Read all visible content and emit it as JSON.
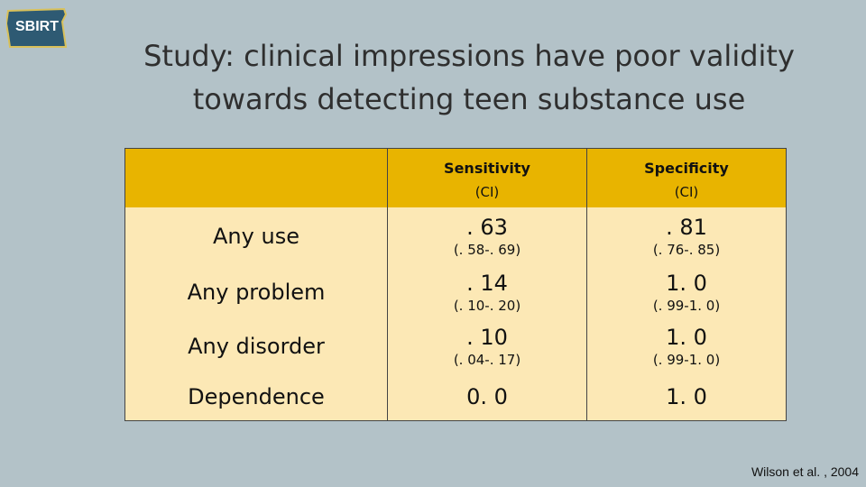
{
  "logo": {
    "text": "SBIRT"
  },
  "title": {
    "line1": "Study: clinical impressions have poor validity",
    "line2": "towards detecting teen substance use"
  },
  "table": {
    "headers": [
      {
        "label": "",
        "sub": ""
      },
      {
        "label": "Sensitivity",
        "sub": "(CI)"
      },
      {
        "label": "Specificity",
        "sub": "(CI)"
      }
    ],
    "rows": [
      {
        "label": "Any use",
        "sensitivity": ". 63",
        "sensitivity_ci": "(. 58-. 69)",
        "specificity": ". 81",
        "specificity_ci": "(. 76-. 85)"
      },
      {
        "label": "Any problem",
        "sensitivity": ". 14",
        "sensitivity_ci": "(. 10-. 20)",
        "specificity": "1. 0",
        "specificity_ci": "(. 99-1. 0)"
      },
      {
        "label": "Any disorder",
        "sensitivity": ". 10",
        "sensitivity_ci": "(. 04-. 17)",
        "specificity": "1. 0",
        "specificity_ci": "(. 99-1. 0)"
      },
      {
        "label": "Dependence",
        "sensitivity": "0. 0",
        "sensitivity_ci": "",
        "specificity": "1. 0",
        "specificity_ci": ""
      }
    ]
  },
  "citation": "Wilson et al. , 2004",
  "colors": {
    "background": "#b3c2c8",
    "header": "#e8b400",
    "body": "#fce8b5",
    "logo": "#2e5a73"
  }
}
